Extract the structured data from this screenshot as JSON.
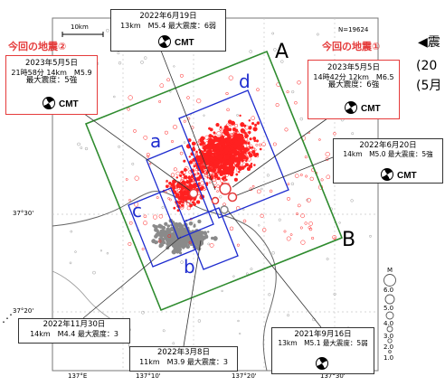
{
  "scale_label": "10km",
  "sample_count": "N=19624",
  "region_labels": {
    "a": "a",
    "b": "b",
    "c": "c",
    "d": "d"
  },
  "section_endpoints": {
    "A": "A",
    "B": "B"
  },
  "side_caption": {
    "line1": "◀震",
    "line2": "(20",
    "line3": "(5月"
  },
  "lat_labels": [
    "37°30'",
    "37°20'"
  ],
  "lon_labels": [
    "137°E",
    "137°10'",
    "137°20'",
    "137°30'"
  ],
  "magnitude_legend": {
    "title": "M",
    "values": [
      "6.0",
      "5.0",
      "4.0",
      "3.0",
      "2.0",
      "1.0"
    ]
  },
  "events": {
    "eq2022_06_19": {
      "date": "2022年6月19日",
      "detail": "13km　M5.4 最大震度：6弱",
      "cmt": "CMT"
    },
    "eq_this_2": {
      "heading": "今回の地震②",
      "date": "2023年5月5日",
      "detail": "21時58分 14km　M5.9",
      "intensity": "最大震度：5強",
      "cmt": "CMT"
    },
    "eq_this_1": {
      "heading": "今回の地震①",
      "date": "2023年5月5日",
      "detail": "14時42分 12km　M6.5",
      "intensity": "最大震度：6強",
      "cmt": "CMT"
    },
    "eq2022_06_20": {
      "date": "2022年6月20日",
      "detail": "14km　M5.0 最大震度：5強",
      "cmt": "CMT"
    },
    "eq2022_11_30": {
      "date": "2022年11月30日",
      "detail": "14km　M4.4 最大震度：3"
    },
    "eq2022_03_08": {
      "date": "2022年3月8日",
      "detail": "11km　M3.9 最大震度：3"
    },
    "eq2021_09_16": {
      "date": "2021年9月16日",
      "detail": "13km　M5.1 最大震度：5弱"
    }
  },
  "colors": {
    "recent": "#ff2020",
    "past": "#8a8a8a",
    "region_box": "#1e2ccf",
    "section_box": "#2e8b2e",
    "highlight": "#e53b3b"
  }
}
